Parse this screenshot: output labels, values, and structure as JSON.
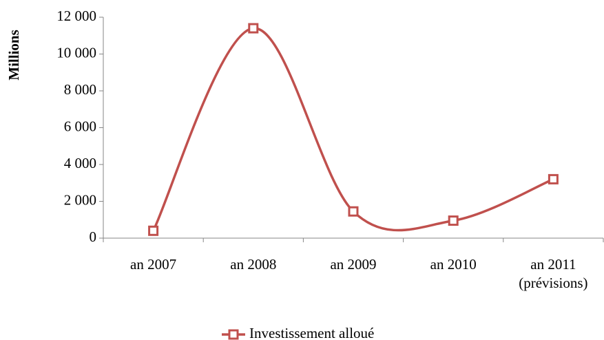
{
  "chart_data": {
    "type": "line",
    "y_label": "Millions",
    "categories": [
      "an 2007",
      "an 2008",
      "an 2009",
      "an 2010",
      "an 2011\n(prévisions)"
    ],
    "series": [
      {
        "name": "Investissement alloué",
        "color": "#c0504d",
        "values": [
          400,
          11400,
          1450,
          950,
          3200
        ]
      }
    ],
    "ylim": [
      0,
      12000
    ],
    "yticks": [
      0,
      {
        "value": 2000,
        "label": "2 000"
      },
      {
        "value": 4000,
        "label": "4 000"
      },
      {
        "value": 6000,
        "label": "6 000"
      },
      {
        "value": 8000,
        "label": "8 000"
      },
      {
        "value": 10000,
        "label": "10 000"
      },
      {
        "value": 12000,
        "label": "12 000"
      }
    ],
    "grid": false,
    "smooth": true,
    "legend": "bottom"
  }
}
